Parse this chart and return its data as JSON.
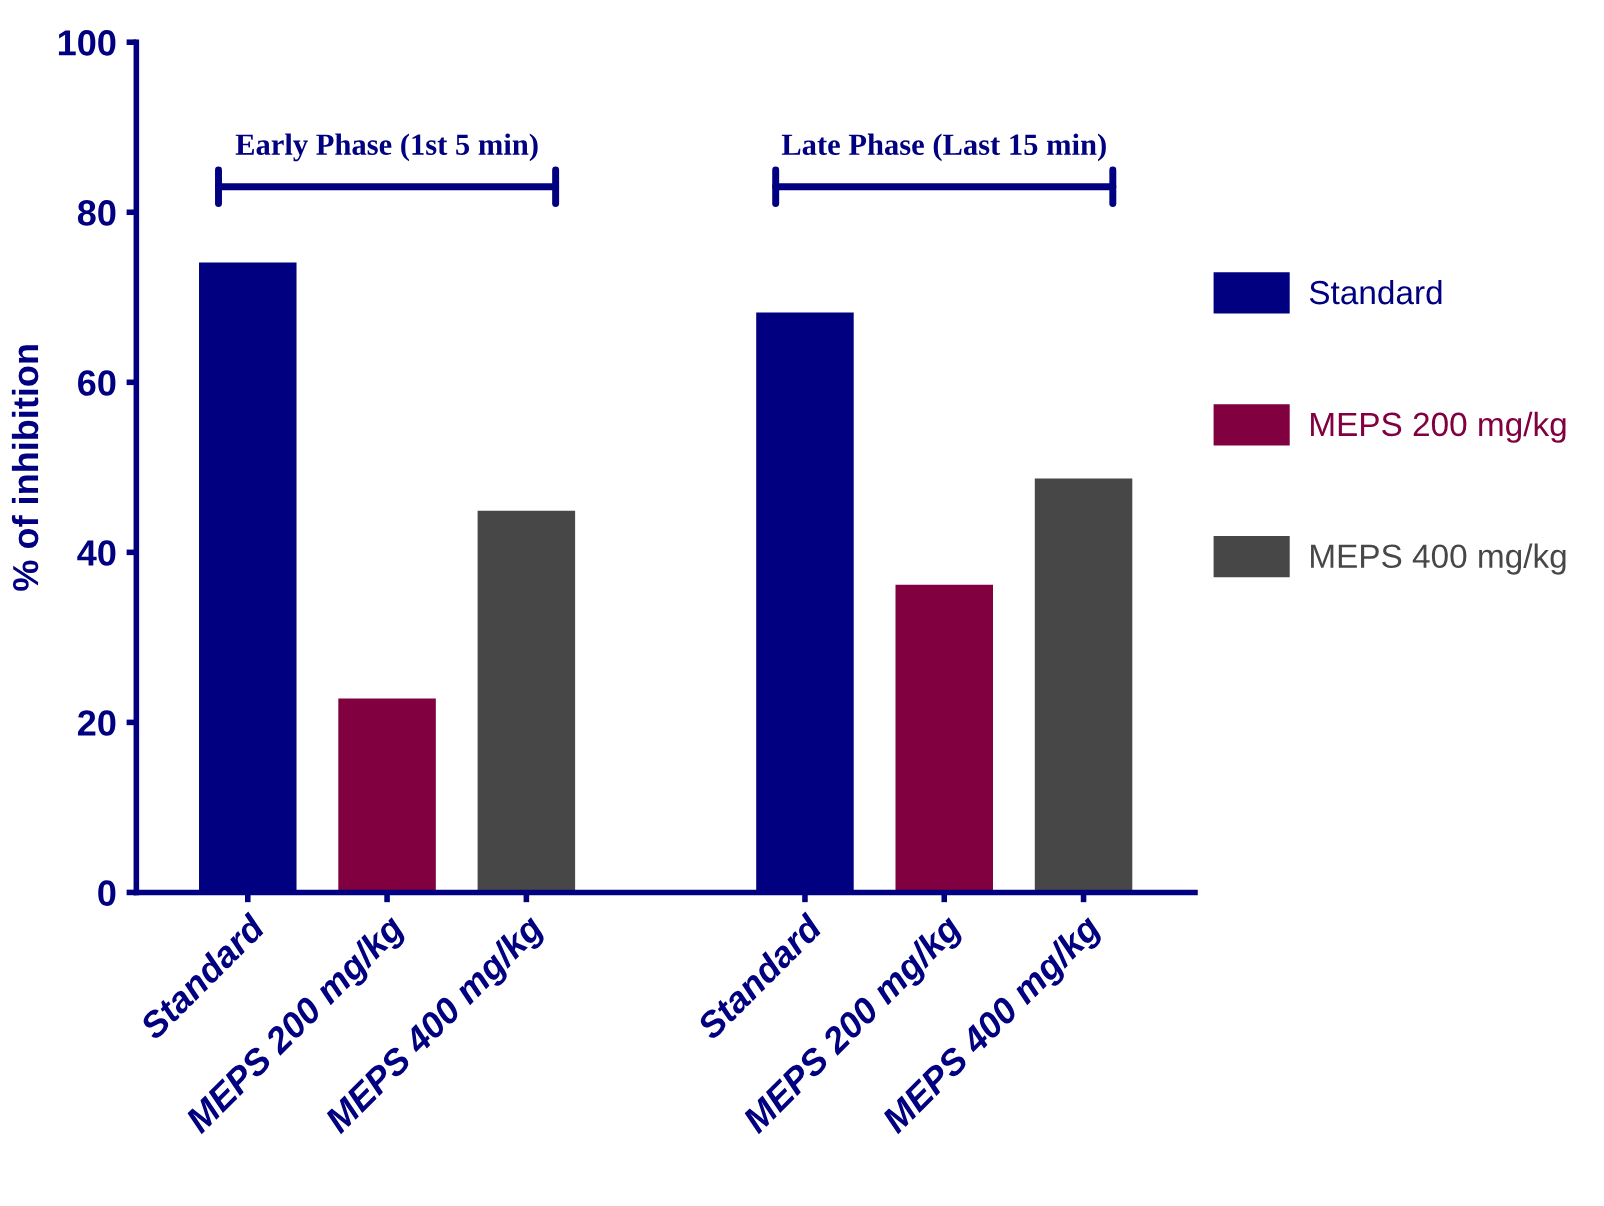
{
  "chart_data": {
    "type": "bar",
    "ylabel": "% of inhibition",
    "categories": [
      "Standard",
      "MEPS 200 mg/kg",
      "MEPS 400 mg/kg",
      null,
      "Standard",
      "MEPS 200 mg/kg",
      "MEPS 400 mg/kg"
    ],
    "series": [
      {
        "name": "Standard",
        "color": "#000080",
        "values": [
          74.1,
          null,
          null,
          null,
          68.2,
          null,
          null
        ]
      },
      {
        "name": "MEPS 200 mg/kg",
        "color": "#800040",
        "values": [
          null,
          22.8,
          null,
          null,
          null,
          36.2,
          null
        ]
      },
      {
        "name": "MEPS 400 mg/kg",
        "color": "#474747",
        "values": [
          null,
          null,
          44.9,
          null,
          null,
          null,
          48.7
        ]
      }
    ],
    "ylim": [
      0,
      100
    ],
    "yticks": [
      0,
      20,
      40,
      60,
      80,
      100
    ],
    "grid": false,
    "legend": "right",
    "annotations": [
      "Early Phase (1st 5 min)",
      "Late Phase (Last 15 min)"
    ]
  }
}
